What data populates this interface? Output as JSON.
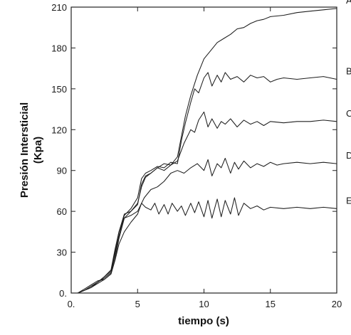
{
  "chart_data": {
    "type": "line",
    "xlabel": "tiempo (s)",
    "ylabel_line1": "Presión Intersticial",
    "ylabel_line2": "(Kpa)",
    "xlim": [
      0,
      20
    ],
    "ylim": [
      0,
      210
    ],
    "x_ticks": [
      {
        "value": 0,
        "label": "0."
      },
      {
        "value": 5,
        "label": "5"
      },
      {
        "value": 10,
        "label": "10"
      },
      {
        "value": 15,
        "label": "15"
      },
      {
        "value": 20,
        "label": "20"
      }
    ],
    "y_ticks": [
      {
        "value": 0,
        "label": "0."
      },
      {
        "value": 30,
        "label": "30"
      },
      {
        "value": 60,
        "label": "60"
      },
      {
        "value": 90,
        "label": "90"
      },
      {
        "value": 120,
        "label": "120"
      },
      {
        "value": 150,
        "label": "150"
      },
      {
        "value": 180,
        "label": "180"
      },
      {
        "value": 210,
        "label": "210"
      }
    ],
    "grid": false,
    "legend": "series letters at right edge of plot",
    "line_color": "#1e1e1e",
    "series": [
      {
        "name": "A",
        "x": [
          0.5,
          1,
          1.5,
          2,
          2.5,
          3,
          3.3,
          3.6,
          4,
          4.5,
          5,
          5.3,
          5.6,
          6,
          6.5,
          7,
          7.5,
          8,
          8.3,
          8.6,
          9,
          9.5,
          10,
          10.5,
          11,
          11.5,
          12,
          12.5,
          13,
          13.5,
          14,
          14.5,
          15,
          16,
          17,
          18,
          19,
          20
        ],
        "y": [
          0,
          3,
          6,
          9,
          10,
          14,
          25,
          40,
          55,
          60,
          65,
          80,
          86,
          88,
          92,
          95,
          94,
          100,
          115,
          130,
          145,
          160,
          172,
          178,
          184,
          187,
          190,
          194,
          195,
          198,
          200,
          201,
          203,
          204,
          206,
          207,
          208,
          209
        ]
      },
      {
        "name": "B",
        "x": [
          0.5,
          1,
          1.5,
          2,
          2.5,
          3,
          3.3,
          3.6,
          4,
          4.5,
          5,
          5.3,
          5.6,
          6,
          6.5,
          7,
          7.5,
          8,
          8.3,
          8.6,
          9,
          9.3,
          9.6,
          10,
          10.3,
          10.6,
          11,
          11.3,
          11.6,
          12,
          12.5,
          13,
          13.5,
          14,
          14.5,
          15,
          15.5,
          16,
          17,
          18,
          19,
          20
        ],
        "y": [
          0,
          2,
          5,
          8,
          11,
          15,
          28,
          42,
          57,
          62,
          70,
          84,
          88,
          90,
          93,
          92,
          96,
          95,
          112,
          125,
          140,
          150,
          147,
          158,
          162,
          152,
          160,
          155,
          162,
          157,
          159,
          155,
          160,
          158,
          159,
          155,
          157,
          158,
          157,
          158,
          159,
          157
        ]
      },
      {
        "name": "C",
        "x": [
          0.5,
          1,
          1.5,
          2,
          2.5,
          3,
          3.3,
          3.6,
          4,
          4.5,
          5,
          5.3,
          5.6,
          6,
          6.5,
          7,
          7.5,
          8,
          8.5,
          9,
          9.3,
          9.6,
          10,
          10.3,
          10.6,
          11,
          11.3,
          11.6,
          12,
          12.5,
          13,
          13.5,
          14,
          14.5,
          15,
          16,
          17,
          18,
          19,
          20
        ],
        "y": [
          0,
          2,
          5,
          8,
          12,
          16,
          30,
          45,
          58,
          60,
          66,
          78,
          85,
          88,
          92,
          90,
          94,
          97,
          110,
          120,
          118,
          127,
          133,
          122,
          128,
          121,
          126,
          124,
          128,
          122,
          127,
          124,
          126,
          123,
          126,
          125,
          126,
          126,
          127,
          126
        ]
      },
      {
        "name": "D",
        "x": [
          0.5,
          1,
          1.5,
          2,
          2.5,
          3,
          3.3,
          3.6,
          4,
          4.5,
          5,
          5.5,
          6,
          6.5,
          7,
          7.5,
          8,
          8.5,
          9,
          9.5,
          10,
          10.3,
          10.6,
          11,
          11.3,
          11.6,
          12,
          12.3,
          12.6,
          13,
          13.5,
          14,
          14.5,
          15,
          15.5,
          16,
          17,
          18,
          19,
          20
        ],
        "y": [
          0,
          2,
          4,
          8,
          12,
          17,
          32,
          45,
          55,
          57,
          60,
          70,
          76,
          78,
          82,
          88,
          90,
          88,
          92,
          95,
          90,
          98,
          86,
          95,
          92,
          99,
          88,
          96,
          91,
          97,
          92,
          95,
          93,
          96,
          94,
          95,
          96,
          95,
          96,
          95
        ]
      },
      {
        "name": "E",
        "x": [
          0.5,
          1,
          1.5,
          2,
          2.5,
          3,
          3.3,
          3.6,
          4,
          4.5,
          5,
          5.3,
          5.6,
          6,
          6.3,
          6.6,
          7,
          7.3,
          7.6,
          8,
          8.3,
          8.6,
          9,
          9.3,
          9.6,
          10,
          10.3,
          10.6,
          11,
          11.3,
          11.6,
          12,
          12.3,
          12.6,
          13,
          13.5,
          14,
          14.5,
          15,
          16,
          17,
          18,
          19,
          20
        ],
        "y": [
          0,
          2,
          4,
          7,
          10,
          14,
          24,
          36,
          45,
          52,
          58,
          66,
          63,
          61,
          66,
          58,
          65,
          58,
          66,
          60,
          64,
          57,
          66,
          59,
          67,
          56,
          68,
          55,
          69,
          56,
          68,
          58,
          70,
          57,
          66,
          62,
          64,
          61,
          63,
          62,
          63,
          62,
          63,
          62
        ]
      }
    ]
  }
}
